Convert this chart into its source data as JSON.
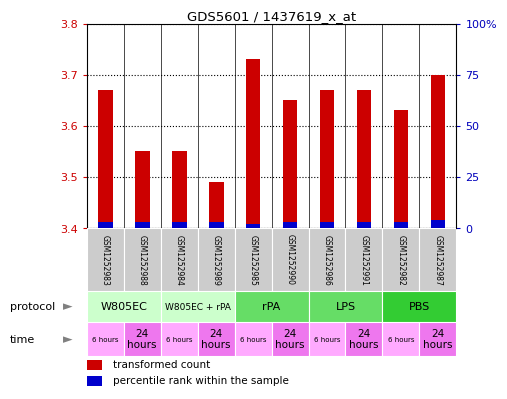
{
  "title": "GDS5601 / 1437619_x_at",
  "samples": [
    "GSM1252983",
    "GSM1252988",
    "GSM1252984",
    "GSM1252989",
    "GSM1252985",
    "GSM1252990",
    "GSM1252986",
    "GSM1252991",
    "GSM1252982",
    "GSM1252987"
  ],
  "transformed_count": [
    3.67,
    3.55,
    3.55,
    3.49,
    3.73,
    3.65,
    3.67,
    3.67,
    3.63,
    3.7
  ],
  "percentile_rank": [
    3,
    3,
    3,
    3,
    2,
    3,
    3,
    3,
    3,
    4
  ],
  "bar_base": 3.4,
  "ylim_left": [
    3.4,
    3.8
  ],
  "ylim_right": [
    0,
    100
  ],
  "yticks_left": [
    3.4,
    3.5,
    3.6,
    3.7,
    3.8
  ],
  "yticks_right": [
    0,
    25,
    50,
    75,
    100
  ],
  "protocols": [
    {
      "label": "W805EC",
      "start": 0,
      "end": 2,
      "color": "#ccffcc"
    },
    {
      "label": "W805EC + rPA",
      "start": 2,
      "end": 4,
      "color": "#ccffcc"
    },
    {
      "label": "rPA",
      "start": 4,
      "end": 6,
      "color": "#66dd66"
    },
    {
      "label": "LPS",
      "start": 6,
      "end": 8,
      "color": "#66dd66"
    },
    {
      "label": "PBS",
      "start": 8,
      "end": 10,
      "color": "#33cc33"
    }
  ],
  "times": [
    "6 hours",
    "24\nhours",
    "6 hours",
    "24\nhours",
    "6 hours",
    "24\nhours",
    "6 hours",
    "24\nhours",
    "6 hours",
    "24\nhours"
  ],
  "time_color_light": "#ffaaff",
  "time_color_dark": "#ee77ee",
  "bar_color_red": "#cc0000",
  "bar_color_blue": "#0000cc",
  "sample_bg_color": "#cccccc",
  "left_axis_color": "#cc0000",
  "right_axis_color": "#0000bb",
  "legend_red": "transformed count",
  "legend_blue": "percentile rank within the sample",
  "bar_width": 0.4
}
